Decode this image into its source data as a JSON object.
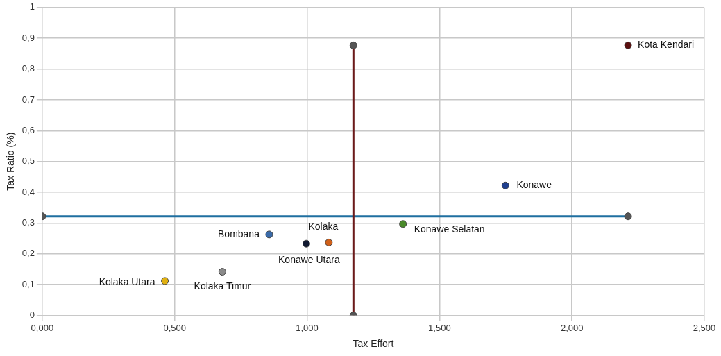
{
  "chart_data": {
    "type": "scatter",
    "xlabel": "Tax Effort",
    "ylabel": "Tax Ratio (%)",
    "marker": "circle",
    "grid": true,
    "legend": false,
    "xlim": [
      0,
      2.5
    ],
    "ylim": [
      0,
      1
    ],
    "xticks": [
      {
        "value": 0,
        "label": "0,000"
      },
      {
        "value": 0.5,
        "label": "0,500"
      },
      {
        "value": 1,
        "label": "1,000"
      },
      {
        "value": 1.5,
        "label": "1,500"
      },
      {
        "value": 2,
        "label": "2,000"
      },
      {
        "value": 2.5,
        "label": "2,500"
      }
    ],
    "yticks": [
      0,
      {
        "value": 0.1,
        "label": "0,1"
      },
      {
        "value": 0.2,
        "label": "0,2"
      },
      {
        "value": 0.3,
        "label": "0,3"
      },
      {
        "value": 0.4,
        "label": "0,4"
      },
      {
        "value": 0.5,
        "label": "0,5"
      },
      {
        "value": 0.6,
        "label": "0,6"
      },
      {
        "value": 0.7,
        "label": "0,7"
      },
      {
        "value": 0.8,
        "label": "0,8"
      },
      {
        "value": 0.9,
        "label": "0,9"
      },
      1
    ],
    "series": [
      {
        "type": "line",
        "color": "#6b1a1a",
        "x": [
          1.175,
          1.175
        ],
        "values": [
          0,
          0.877
        ]
      },
      {
        "type": "line",
        "color": "#1f6fa0",
        "x": [
          0,
          2.212
        ],
        "values": [
          0.322,
          0.322
        ]
      },
      {
        "name": "Kota Kendari",
        "color": "#5a1010",
        "x": [
          2.212
        ],
        "values": [
          0.877
        ]
      },
      {
        "name": "Konawe",
        "color": "#1f3f8f",
        "x": [
          1.749
        ],
        "values": [
          0.422
        ]
      },
      {
        "name": "Konawe Selatan",
        "color": "#4a8a2a",
        "x": [
          1.362
        ],
        "values": [
          0.297
        ]
      },
      {
        "name": "Kolaka",
        "color": "#d0601a",
        "x": [
          1.082
        ],
        "values": [
          0.237
        ]
      },
      {
        "name": "Konawe Utara",
        "color": "#101830",
        "x": [
          0.997
        ],
        "values": [
          0.233
        ]
      },
      {
        "name": "Bombana",
        "color": "#3a6aa8",
        "x": [
          0.857
        ],
        "values": [
          0.263
        ]
      },
      {
        "name": "Kolaka Timur",
        "color": "#8a8a8a",
        "x": [
          0.68
        ],
        "values": [
          0.142
        ]
      },
      {
        "name": "Kolaka Utara",
        "color": "#e0b010",
        "x": [
          0.463
        ],
        "values": [
          0.112
        ]
      }
    ]
  }
}
